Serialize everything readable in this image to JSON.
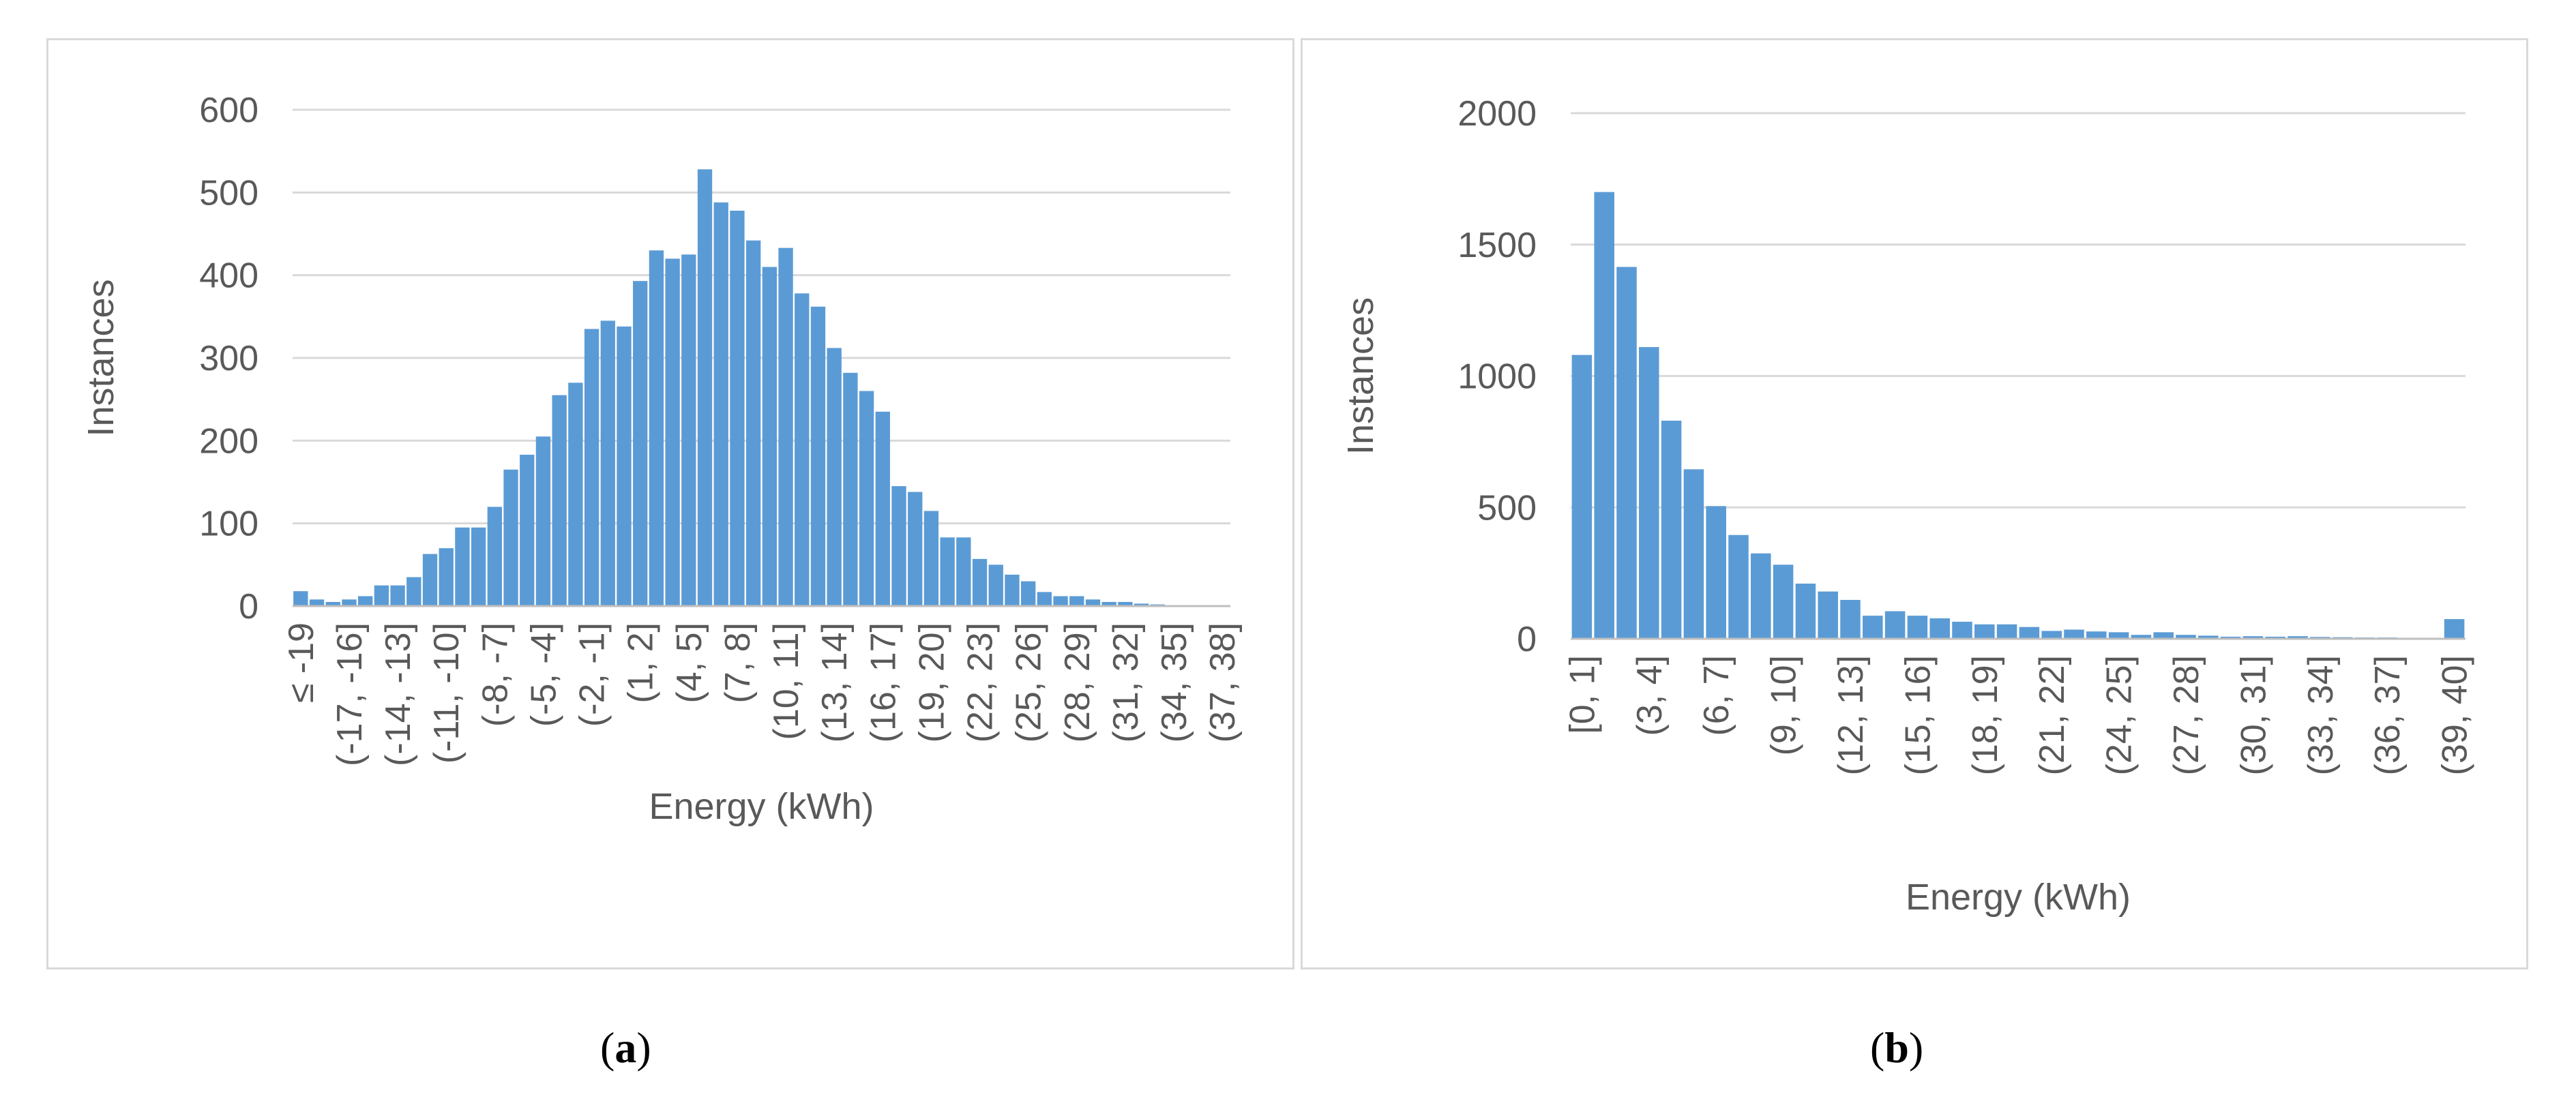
{
  "chart_data": [
    {
      "type": "bar",
      "panel_label": "a",
      "xlabel": "Energy (kWh)",
      "ylabel": "Instances",
      "ylim": [
        0,
        600
      ],
      "yticks": [
        0,
        100,
        200,
        300,
        400,
        500,
        600
      ],
      "grid": true,
      "color": "#5B9BD5",
      "categories": [
        "≤ -19",
        "(-19, -18]",
        "(-18, -17]",
        "(-17, -16]",
        "(-16, -15]",
        "(-15, -14]",
        "(-14, -13]",
        "(-13, -12]",
        "(-12, -11]",
        "(-11, -10]",
        "(-10, -9]",
        "(-9, -8]",
        "(-8, -7]",
        "(-7, -6]",
        "(-6, -5]",
        "(-5, -4]",
        "(-4, -3]",
        "(-3, -2]",
        "(-2, -1]",
        "(-1, 0]",
        "(0, 1]",
        "(1, 2]",
        "(2, 3]",
        "(3, 4]",
        "(4, 5]",
        "(5, 6]",
        "(6, 7]",
        "(7, 8]",
        "(8, 9]",
        "(9, 10]",
        "(10, 11]",
        "(11, 12]",
        "(12, 13]",
        "(13, 14]",
        "(14, 15]",
        "(15, 16]",
        "(16, 17]",
        "(17, 18]",
        "(18, 19]",
        "(19, 20]",
        "(20, 21]",
        "(21, 22]",
        "(22, 23]",
        "(23, 24]",
        "(24, 25]",
        "(25, 26]",
        "(26, 27]",
        "(27, 28]",
        "(28, 29]",
        "(29, 30]",
        "(30, 31]",
        "(31, 32]",
        "(32, 33]",
        "(33, 34]",
        "(34, 35]",
        "(35, 36]",
        "(36, 37]",
        "(37, 38]"
      ],
      "values": [
        18,
        8,
        5,
        8,
        12,
        25,
        25,
        35,
        63,
        70,
        95,
        95,
        120,
        165,
        183,
        205,
        255,
        270,
        335,
        345,
        338,
        393,
        430,
        420,
        425,
        528,
        488,
        478,
        442,
        410,
        433,
        378,
        362,
        312,
        282,
        260,
        235,
        145,
        138,
        115,
        83,
        83,
        57,
        50,
        38,
        30,
        17,
        12,
        12,
        8,
        5,
        5,
        3,
        2,
        1,
        1,
        1,
        1
      ],
      "xtick_every": 3
    },
    {
      "type": "bar",
      "panel_label": "b",
      "xlabel": "Energy (kWh)",
      "ylabel": "Instances",
      "ylim": [
        0,
        2000
      ],
      "yticks": [
        0,
        500,
        1000,
        1500,
        2000
      ],
      "grid": true,
      "color": "#5B9BD5",
      "categories": [
        "[0, 1]",
        "(1, 2]",
        "(2, 3]",
        "(3, 4]",
        "(4, 5]",
        "(5, 6]",
        "(6, 7]",
        "(7, 8]",
        "(8, 9]",
        "(9, 10]",
        "(10, 11]",
        "(11, 12]",
        "(12, 13]",
        "(13, 14]",
        "(14, 15]",
        "(15, 16]",
        "(16, 17]",
        "(17, 18]",
        "(18, 19]",
        "(19, 20]",
        "(20, 21]",
        "(21, 22]",
        "(22, 23]",
        "(23, 24]",
        "(24, 25]",
        "(25, 26]",
        "(26, 27]",
        "(27, 28]",
        "(28, 29]",
        "(29, 30]",
        "(30, 31]",
        "(31, 32]",
        "(32, 33]",
        "(33, 34]",
        "(34, 35]",
        "(35, 36]",
        "(36, 37]",
        "(37, 38]",
        "(38, 39]",
        "(39, 40]"
      ],
      "values": [
        1080,
        1700,
        1415,
        1110,
        830,
        645,
        505,
        395,
        325,
        282,
        210,
        180,
        148,
        88,
        105,
        88,
        78,
        65,
        55,
        55,
        45,
        30,
        35,
        28,
        25,
        15,
        25,
        15,
        12,
        8,
        10,
        8,
        10,
        7,
        6,
        5,
        5,
        4,
        4,
        75
      ],
      "xtick_every": 3
    }
  ],
  "captions": {
    "a": {
      "open": "(",
      "letter": "a",
      "close": ")"
    },
    "b": {
      "open": "(",
      "letter": "b",
      "close": ")"
    }
  }
}
